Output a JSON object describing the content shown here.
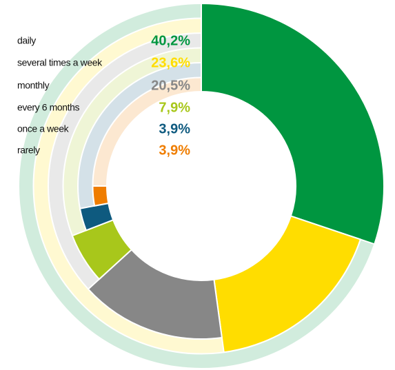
{
  "chart_data": {
    "type": "radial-pie",
    "categories": [
      "daily",
      "several times a week",
      "monthly",
      "every 6 months",
      "once a week",
      "rarely"
    ],
    "series": [
      {
        "values": [
          40.2,
          23.6,
          20.5,
          7.9,
          3.9,
          3.9
        ],
        "value_labels": [
          "40,2%",
          "23,6%",
          "20,5%",
          "7,9%",
          "3,9%",
          "3,9%"
        ],
        "colors": [
          "#009640",
          "#ffdd00",
          "#878787",
          "#a8c71b",
          "#0e5a7f",
          "#ef7d00"
        ]
      }
    ]
  }
}
